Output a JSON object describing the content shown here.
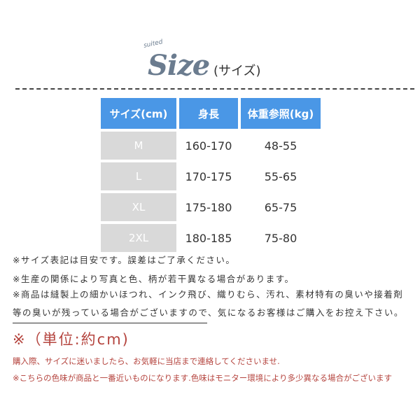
{
  "header": {
    "logo_word": "Size",
    "logo_small": "suited",
    "subtitle": "(サイズ)"
  },
  "table": {
    "headers": [
      "サイズ(cm)",
      "身長",
      "体重参照(kg)"
    ],
    "rows": [
      [
        "M",
        "160-170",
        "48-55"
      ],
      [
        "L",
        "170-175",
        "55-65"
      ],
      [
        "XL",
        "175-180",
        "65-75"
      ],
      [
        "2XL",
        "180-185",
        "75-80"
      ]
    ]
  },
  "notes": [
    "※サイズ表記は目安です。誤差はご了承ください。",
    "※生産の関係により写真と色、柄が若干異なる場合があります。",
    "※商品は縫製上の細かいほつれ、インク飛び、織りむら、汚れ、素材特有の臭いや接着剤",
    "等の臭いが残っている場合がございますので、気になるお客様はご購入をお控え下さい。"
  ],
  "unit": "※（単位:約cm)",
  "footer": [
    "購入際、サイズに迷いましたら、お気軽に当店まで連絡してくださいませ.",
    "※こちらの色味が商品と一番近いものになります.色味はモニター環境により多少異なる場合がございます"
  ],
  "colors": {
    "header_blue": "#4a97e6",
    "size_grey": "#d9d9d9",
    "accent_red": "#b5453f",
    "logo": "#6b7c8f"
  }
}
